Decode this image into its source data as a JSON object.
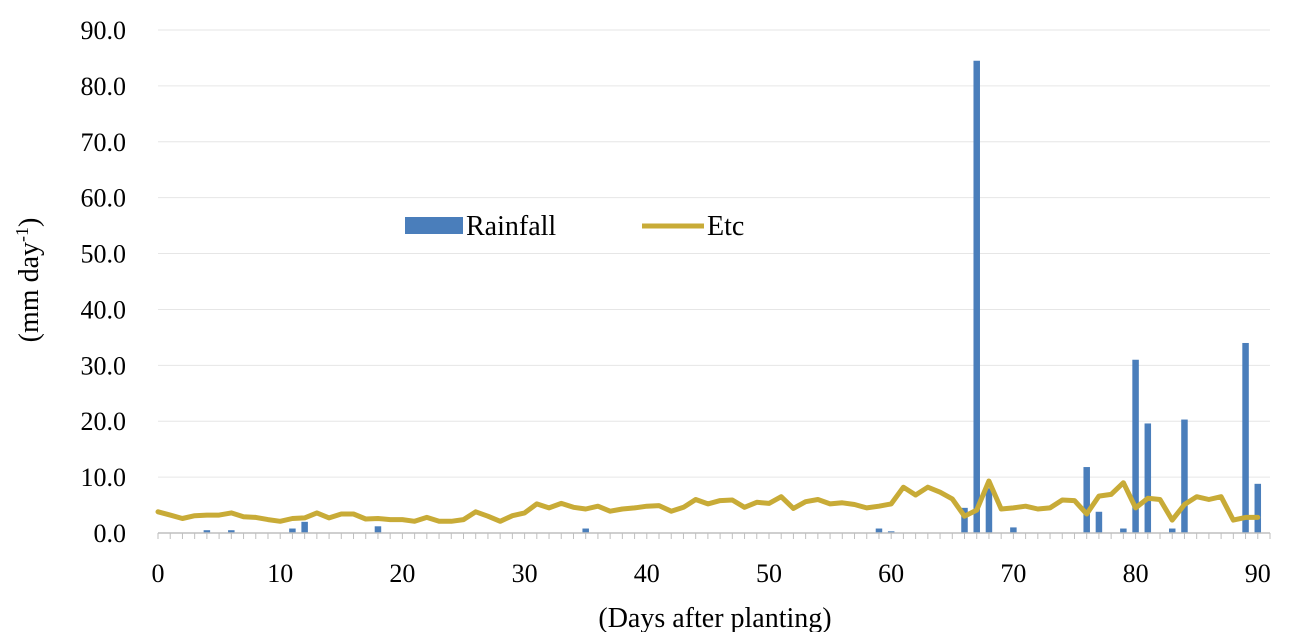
{
  "chart_data": {
    "type": "bar+line",
    "title": "",
    "xlabel": "(Days after planting)",
    "ylabel_main": "(mm day",
    "ylabel_sup": "-1",
    "ylabel_close": ")",
    "xlim": [
      0,
      91
    ],
    "ylim": [
      0,
      90
    ],
    "xticks": [
      0,
      10,
      20,
      30,
      40,
      50,
      60,
      70,
      80,
      90
    ],
    "xtick_labels": [
      "0",
      "10",
      "20",
      "30",
      "40",
      "50",
      "60",
      "70",
      "80",
      "90"
    ],
    "yticks": [
      0,
      10,
      20,
      30,
      40,
      50,
      60,
      70,
      80,
      90
    ],
    "ytick_labels": [
      "0.0",
      "10.0",
      "20.0",
      "30.0",
      "40.0",
      "50.0",
      "60.0",
      "70.0",
      "80.0",
      "90.0"
    ],
    "grid": "horizontal",
    "legend_position": "center-left",
    "series": [
      {
        "name": "Rainfall",
        "kind": "bar",
        "color": "#4a7ebb",
        "points": [
          [
            4,
            0.5
          ],
          [
            6,
            0.5
          ],
          [
            11,
            0.8
          ],
          [
            12,
            2.0
          ],
          [
            18,
            1.2
          ],
          [
            35,
            0.8
          ],
          [
            59,
            0.8
          ],
          [
            60,
            0.3
          ],
          [
            66,
            4.5
          ],
          [
            67,
            84.5
          ],
          [
            68,
            8.0
          ],
          [
            70,
            1.0
          ],
          [
            76,
            11.8
          ],
          [
            77,
            3.8
          ],
          [
            79,
            0.8
          ],
          [
            80,
            31.0
          ],
          [
            81,
            19.6
          ],
          [
            83,
            0.8
          ],
          [
            84,
            20.3
          ],
          [
            89,
            34.0
          ],
          [
            90,
            8.8
          ]
        ]
      },
      {
        "name": "Etc",
        "kind": "line",
        "color": "#c8ab37",
        "values": [
          3.8,
          3.2,
          2.6,
          3.1,
          3.2,
          3.2,
          3.6,
          2.9,
          2.8,
          2.4,
          2.1,
          2.6,
          2.7,
          3.6,
          2.7,
          3.4,
          3.4,
          2.5,
          2.6,
          2.4,
          2.4,
          2.1,
          2.8,
          2.1,
          2.1,
          2.4,
          3.8,
          3.0,
          2.1,
          3.1,
          3.6,
          5.2,
          4.5,
          5.3,
          4.6,
          4.3,
          4.8,
          3.9,
          4.3,
          4.5,
          4.8,
          4.9,
          3.9,
          4.6,
          6.0,
          5.2,
          5.8,
          5.9,
          4.6,
          5.5,
          5.3,
          6.5,
          4.4,
          5.6,
          6.0,
          5.2,
          5.4,
          5.1,
          4.5,
          4.8,
          5.2,
          8.2,
          6.8,
          8.2,
          7.3,
          6.1,
          3.0,
          4.1,
          9.3,
          4.3,
          4.5,
          4.8,
          4.3,
          4.5,
          5.9,
          5.8,
          3.4,
          6.6,
          6.9,
          9.0,
          4.5,
          6.2,
          6.0,
          2.3,
          5.1,
          6.5,
          6.0,
          6.5,
          2.3,
          2.8,
          2.8
        ]
      }
    ]
  }
}
